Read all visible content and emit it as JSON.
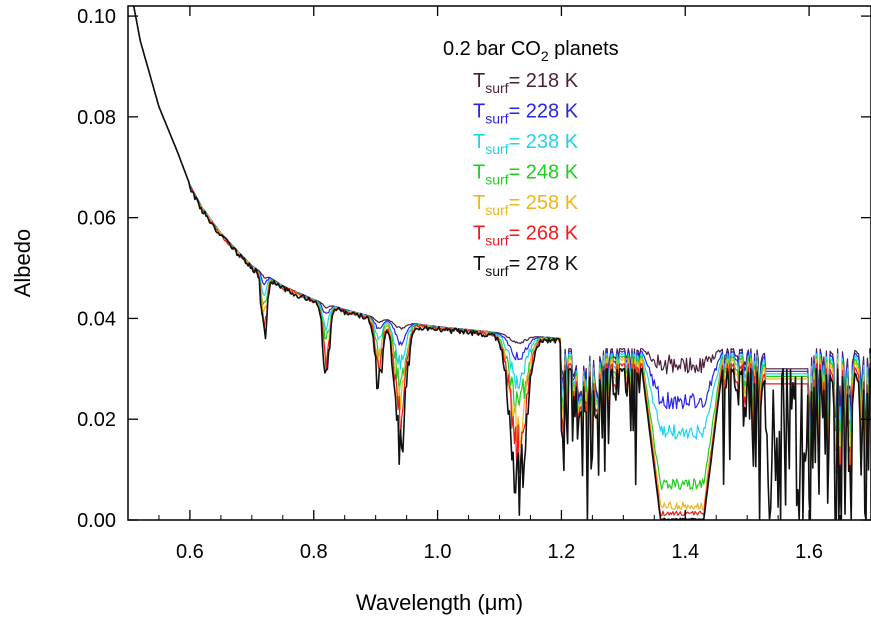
{
  "chart_data": {
    "type": "line",
    "title": "",
    "xlabel": "Wavelength (μm)",
    "ylabel": "Albedo",
    "xlim": [
      0.5,
      1.7
    ],
    "ylim": [
      0.0,
      0.102
    ],
    "xticks": [
      0.6,
      0.8,
      1.0,
      1.2,
      1.4,
      1.6
    ],
    "xtick_labels": [
      "0.6",
      "0.8",
      "1.0",
      "1.2",
      "1.4",
      "1.6"
    ],
    "yticks": [
      0.0,
      0.02,
      0.04,
      0.06,
      0.08,
      0.1
    ],
    "ytick_labels": [
      "0.00",
      "0.02",
      "0.04",
      "0.06",
      "0.08",
      "0.10"
    ],
    "grid": false,
    "legend": {
      "position": "top-center",
      "title_main": "0.2 bar CO",
      "title_sub": "2",
      "title_tail": " planets",
      "entries": [
        {
          "symbol": "T",
          "sub": "surf",
          "text": "= 218 K",
          "color": "#4a1f3a"
        },
        {
          "symbol": "T",
          "sub": "surf",
          "text": "= 228 K",
          "color": "#2626e6"
        },
        {
          "symbol": "T",
          "sub": "surf",
          "text": "= 238 K",
          "color": "#1fd2f0"
        },
        {
          "symbol": "T",
          "sub": "surf",
          "text": "= 248 K",
          "color": "#1fcf1f"
        },
        {
          "symbol": "T",
          "sub": "surf",
          "text": "= 258 K",
          "color": "#f2b41c"
        },
        {
          "symbol": "T",
          "sub": "surf",
          "text": "= 268 K",
          "color": "#ee1c1c"
        },
        {
          "symbol": "T",
          "sub": "surf",
          "text": "= 278 K",
          "color": "#111111"
        }
      ]
    },
    "continuum": {
      "x": [
        0.5,
        0.52,
        0.55,
        0.58,
        0.6,
        0.62,
        0.65,
        0.68,
        0.7,
        0.75,
        0.8,
        0.85,
        0.9,
        0.95,
        1.0,
        1.05,
        1.1,
        1.15,
        1.2
      ],
      "y": [
        0.108,
        0.095,
        0.082,
        0.073,
        0.0665,
        0.062,
        0.057,
        0.053,
        0.0505,
        0.0465,
        0.0438,
        0.0418,
        0.0402,
        0.0392,
        0.0384,
        0.0378,
        0.0372,
        0.0366,
        0.036
      ]
    },
    "series": [
      {
        "name": "T_surf = 218 K",
        "color": "#4a1f3a",
        "depth": 0.05,
        "far_level": 0.034,
        "band14_min": 0.029
      },
      {
        "name": "T_surf = 228 K",
        "color": "#2626e6",
        "depth": 0.14,
        "far_level": 0.0335,
        "band14_min": 0.022
      },
      {
        "name": "T_surf = 238 K",
        "color": "#1fd2f0",
        "depth": 0.28,
        "far_level": 0.033,
        "band14_min": 0.016
      },
      {
        "name": "T_surf = 248 K",
        "color": "#1fcf1f",
        "depth": 0.44,
        "far_level": 0.0325,
        "band14_min": 0.006
      },
      {
        "name": "T_surf = 258 K",
        "color": "#f2b41c",
        "depth": 0.58,
        "far_level": 0.032,
        "band14_min": 0.002
      },
      {
        "name": "T_surf = 268 K",
        "color": "#ee1c1c",
        "depth": 0.72,
        "far_level": 0.031,
        "band14_min": 0.0008
      },
      {
        "name": "T_surf = 278 K",
        "color": "#111111",
        "depth": 0.92,
        "far_level": 0.03,
        "band14_min": 0.0
      }
    ],
    "absorption_bands": [
      {
        "center": 0.72,
        "width": 0.006,
        "strength": 0.014
      },
      {
        "center": 0.82,
        "width": 0.007,
        "strength": 0.016
      },
      {
        "center": 0.905,
        "width": 0.008,
        "strength": 0.014
      },
      {
        "center": 0.94,
        "width": 0.012,
        "strength": 0.027
      },
      {
        "center": 1.13,
        "width": 0.018,
        "strength": 0.032
      },
      {
        "center": 1.38,
        "width": 0.045,
        "strength": 0.036
      }
    ]
  }
}
